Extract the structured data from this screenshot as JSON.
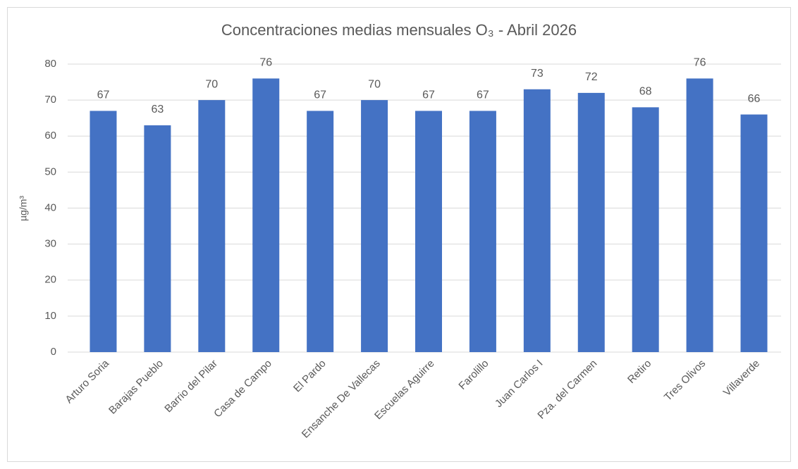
{
  "chart_data": {
    "type": "bar",
    "title": "Concentraciones medias mensuales O₃ - Abril 2026",
    "y_label": "µg/m³",
    "categories": [
      "Arturo Soria",
      "Barajas Pueblo",
      "Barrio del Pilar",
      "Casa de Campo",
      "El Pardo",
      "Ensanche De Vallecas",
      "Escuelas Aguirre",
      "Farolillo",
      "Juan Carlos I",
      "Pza. del Carmen",
      "Retiro",
      "Tres Olivos",
      "Villaverde"
    ],
    "values": [
      67,
      63,
      70,
      76,
      67,
      70,
      67,
      67,
      73,
      72,
      68,
      76,
      66
    ],
    "color": "#4472c4",
    "ylim": [
      0,
      80
    ],
    "yticks": [
      0,
      10,
      20,
      30,
      40,
      50,
      60,
      70,
      80
    ],
    "grid": true
  }
}
